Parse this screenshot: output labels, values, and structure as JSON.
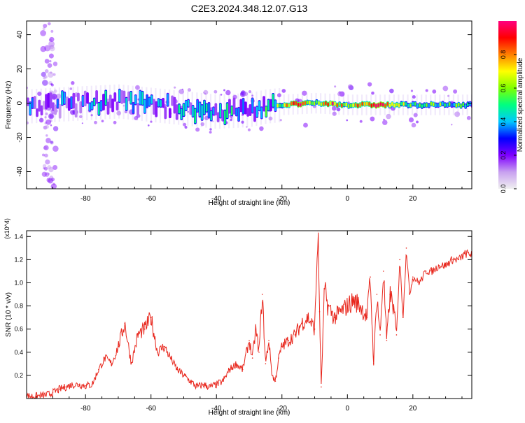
{
  "figure_title": "C2E3.2024.348.12.07.G13",
  "chart_data": [
    {
      "type": "heatmap",
      "xlabel": "Height of straight line (km)",
      "ylabel": "Frequency (Hz)",
      "xlim": [
        -98,
        38
      ],
      "ylim": [
        -50,
        48
      ],
      "x_ticks": [
        -80,
        -60,
        -40,
        -20,
        0,
        20
      ],
      "y_ticks": [
        -40,
        -20,
        0,
        20,
        40
      ],
      "colorbar": {
        "label": "Normalized spectral amplitude",
        "range": [
          0,
          1
        ],
        "ticks": [
          0.0,
          0.2,
          0.4,
          0.6,
          0.8
        ],
        "colormap": [
          "#f0f0f0",
          "#c8a0f0",
          "#8000ff",
          "#0000ff",
          "#00c8ff",
          "#00ff80",
          "#80ff00",
          "#ffff00",
          "#ff8000",
          "#ff0000",
          "#ff0080"
        ]
      },
      "ridge_center_hz": {
        "x": [
          -98,
          -90,
          -80,
          -70,
          -60,
          -50,
          -40,
          -30,
          -25,
          -20,
          -10,
          0,
          10,
          20,
          30,
          38
        ],
        "y": [
          -2,
          -1,
          0,
          1,
          -1,
          -3,
          -5,
          -4,
          -2,
          -1,
          0,
          -1,
          -1,
          -1,
          -1,
          -1
        ]
      },
      "ridge_peak_amplitude": {
        "x": [
          -98,
          -90,
          -80,
          -70,
          -60,
          -50,
          -40,
          -30,
          -25,
          -20,
          -15,
          -10,
          -5,
          0,
          5,
          10,
          15,
          20,
          30,
          38
        ],
        "y": [
          0.25,
          0.3,
          0.35,
          0.35,
          0.35,
          0.35,
          0.4,
          0.35,
          0.45,
          0.6,
          0.95,
          0.5,
          0.9,
          0.6,
          0.85,
          0.9,
          0.6,
          0.55,
          0.5,
          0.5
        ]
      },
      "scatter_column_x": -91
    },
    {
      "type": "line",
      "xlabel": "Height of straight line (km)",
      "ylabel": "SNR (10 * v/v)",
      "y_multiplier_label": "(x10^4)",
      "xlim": [
        -98,
        38
      ],
      "ylim": [
        0,
        1.45
      ],
      "x_ticks": [
        -80,
        -60,
        -40,
        -20,
        0,
        20
      ],
      "y_ticks": [
        0.2,
        0.4,
        0.6,
        0.8,
        1.0,
        1.2,
        1.4
      ],
      "color": "#e8261c",
      "series": [
        {
          "x": [
            -98,
            -95,
            -92,
            -90,
            -88,
            -86,
            -84,
            -82,
            -80,
            -78,
            -76,
            -74,
            -72,
            -70,
            -68,
            -66,
            -64,
            -62,
            -60,
            -58,
            -56,
            -54,
            -52,
            -50,
            -48,
            -46,
            -44,
            -42,
            -40,
            -38,
            -36,
            -34,
            -32,
            -30,
            -29,
            -28,
            -27,
            -26,
            -25,
            -24,
            -23,
            -22,
            -21,
            -20,
            -18,
            -16,
            -14,
            -12,
            -10,
            -9,
            -8.5,
            -8,
            -7,
            -6,
            -4,
            -2,
            0,
            2,
            4,
            6,
            7,
            8,
            9,
            10,
            11,
            12,
            13,
            14,
            15,
            16,
            17,
            18,
            19,
            20,
            22,
            24,
            26,
            28,
            30,
            32,
            34,
            36,
            38
          ],
          "y": [
            0.02,
            0.02,
            0.03,
            0.05,
            0.08,
            0.1,
            0.12,
            0.12,
            0.11,
            0.12,
            0.25,
            0.35,
            0.3,
            0.45,
            0.65,
            0.3,
            0.55,
            0.6,
            0.7,
            0.4,
            0.45,
            0.35,
            0.25,
            0.2,
            0.15,
            0.1,
            0.12,
            0.1,
            0.12,
            0.15,
            0.25,
            0.3,
            0.25,
            0.5,
            0.35,
            0.6,
            0.4,
            0.9,
            0.3,
            0.5,
            0.2,
            0.15,
            0.35,
            0.45,
            0.5,
            0.55,
            0.65,
            0.7,
            0.6,
            1.45,
            0.75,
            0.1,
            0.95,
            0.8,
            0.7,
            0.75,
            0.8,
            0.85,
            0.8,
            0.7,
            1.05,
            0.3,
            0.9,
            0.55,
            1.1,
            0.5,
            0.9,
            0.8,
            0.55,
            1.2,
            0.7,
            1.3,
            0.9,
            1.05,
            1.0,
            1.1,
            1.1,
            1.15,
            1.15,
            1.2,
            1.2,
            1.25,
            1.25
          ]
        }
      ]
    }
  ]
}
